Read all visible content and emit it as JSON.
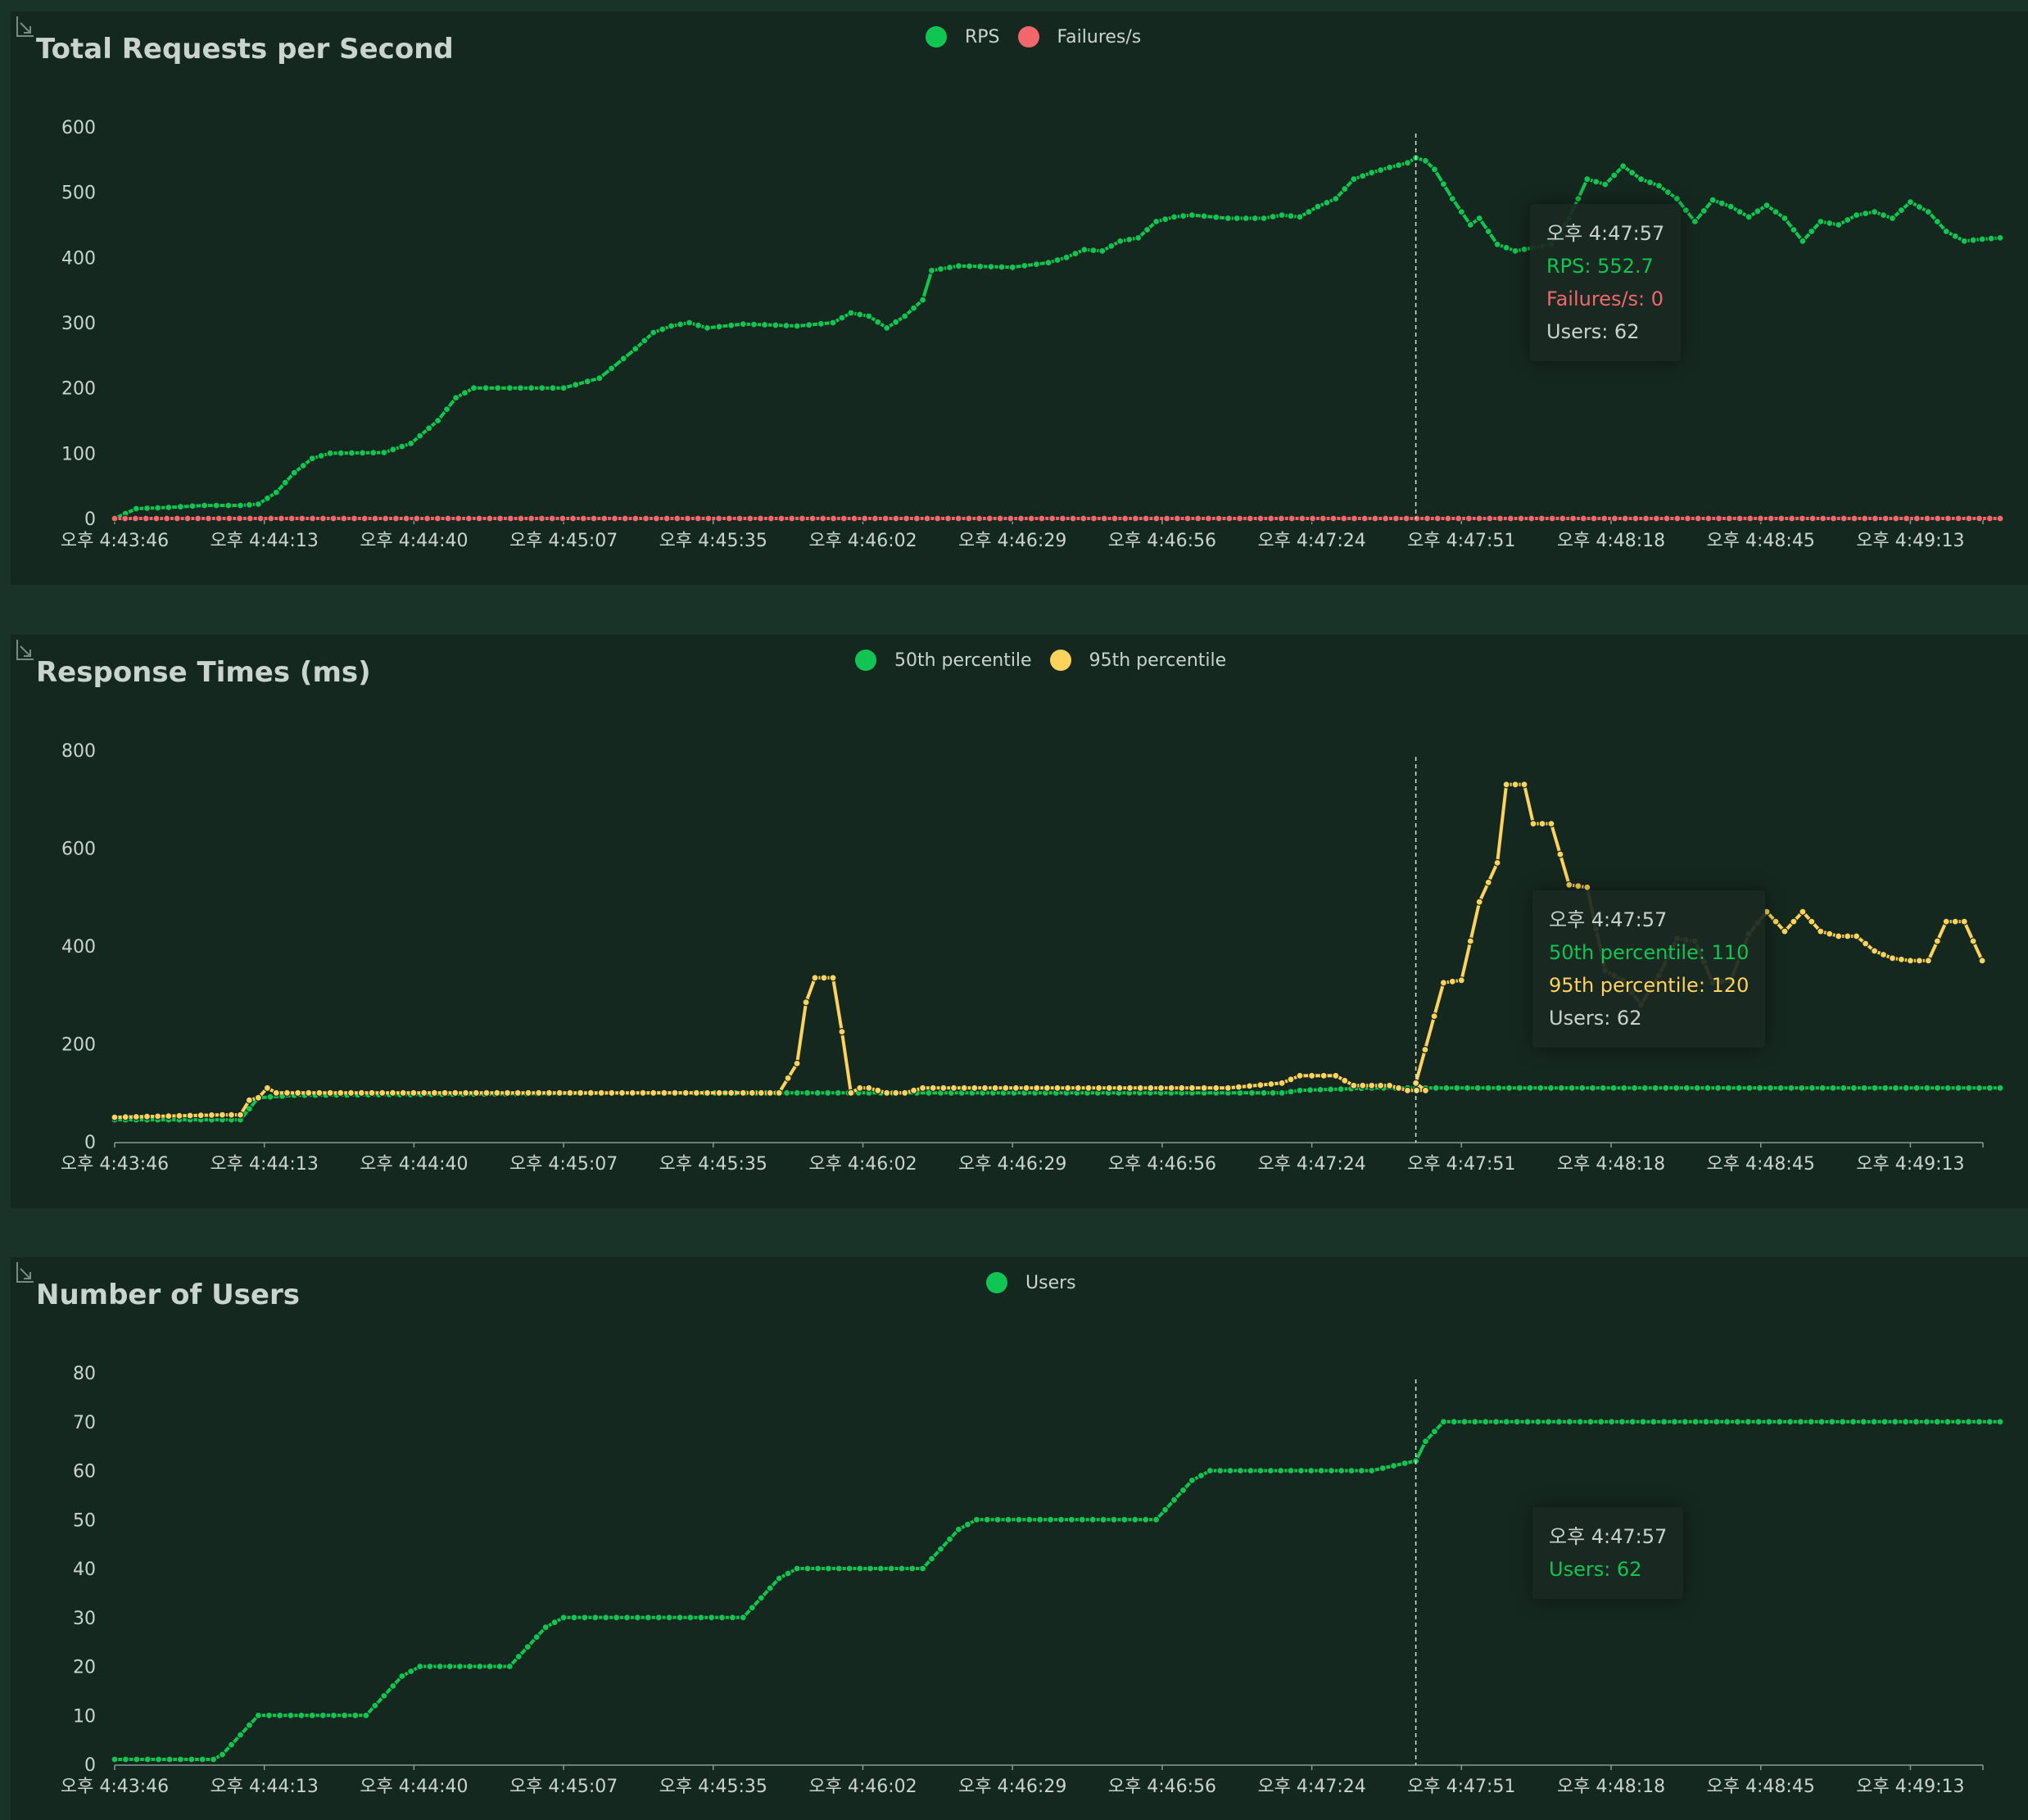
{
  "x_labels": [
    "오후 4:43:46",
    "오후 4:44:13",
    "오후 4:44:40",
    "오후 4:45:07",
    "오후 4:45:35",
    "오후 4:46:02",
    "오후 4:46:29",
    "오후 4:46:56",
    "오후 4:47:24",
    "오후 4:47:51",
    "오후 4:48:18",
    "오후 4:48:45",
    "오후 4:49:13"
  ],
  "panels": [
    {
      "title": "Total Requests per Second",
      "legend": [
        {
          "label": "RPS",
          "color": "#11c552"
        },
        {
          "label": "Failures/s",
          "color": "#f2676b"
        }
      ],
      "tooltip": {
        "time": "오후 4:47:57",
        "lines": [
          {
            "text": "RPS: 552.7",
            "color": "#11c552"
          },
          {
            "text": "Failures/s: 0",
            "color": "#f2676b"
          },
          {
            "text": "Users: 62",
            "color": "#c9d4ce"
          }
        ]
      }
    },
    {
      "title": "Response Times (ms)",
      "legend": [
        {
          "label": "50th percentile",
          "color": "#11c552"
        },
        {
          "label": "95th percentile",
          "color": "#fdd35c"
        }
      ],
      "tooltip": {
        "time": "오후 4:47:57",
        "lines": [
          {
            "text": "50th percentile: 110",
            "color": "#11c552"
          },
          {
            "text": "95th percentile: 120",
            "color": "#fdd35c"
          },
          {
            "text": "Users: 62",
            "color": "#c9d4ce"
          }
        ]
      }
    },
    {
      "title": "Number of Users",
      "legend": [
        {
          "label": "Users",
          "color": "#11c552"
        }
      ],
      "tooltip": {
        "time": "오후 4:47:57",
        "lines": [
          {
            "text": "Users: 62",
            "color": "#11c552"
          }
        ]
      }
    }
  ],
  "chart_data": [
    {
      "type": "line",
      "title": "Total Requests per Second",
      "x_labels": [
        "오후 4:43:46",
        "오후 4:44:13",
        "오후 4:44:40",
        "오후 4:45:07",
        "오후 4:45:35",
        "오후 4:46:02",
        "오후 4:46:29",
        "오후 4:46:56",
        "오후 4:47:24",
        "오후 4:47:51",
        "오후 4:48:18",
        "오후 4:48:45",
        "오후 4:49:13"
      ],
      "ylim": [
        0,
        600
      ],
      "yticks": [
        0,
        100,
        200,
        300,
        400,
        500,
        600
      ],
      "grid": false,
      "legend_position": "top-center",
      "marker_line_x": 0.7246,
      "series": [
        {
          "name": "RPS",
          "color": "#11c552",
          "mode": "points",
          "points": [
            [
              0,
              0
            ],
            [
              0.012,
              15
            ],
            [
              0.03,
              17
            ],
            [
              0.05,
              20
            ],
            [
              0.07,
              20
            ],
            [
              0.08,
              22
            ],
            [
              0.09,
              40
            ],
            [
              0.1,
              70
            ],
            [
              0.11,
              92
            ],
            [
              0.12,
              100
            ],
            [
              0.15,
              101
            ],
            [
              0.165,
              115
            ],
            [
              0.18,
              150
            ],
            [
              0.19,
              185
            ],
            [
              0.2,
              200
            ],
            [
              0.22,
              200
            ],
            [
              0.25,
              200
            ],
            [
              0.27,
              215
            ],
            [
              0.29,
              260
            ],
            [
              0.3,
              285
            ],
            [
              0.31,
              295
            ],
            [
              0.32,
              300
            ],
            [
              0.33,
              292
            ],
            [
              0.35,
              298
            ],
            [
              0.38,
              295
            ],
            [
              0.4,
              300
            ],
            [
              0.41,
              315
            ],
            [
              0.42,
              310
            ],
            [
              0.43,
              292
            ],
            [
              0.44,
              310
            ],
            [
              0.45,
              335
            ],
            [
              0.455,
              380
            ],
            [
              0.47,
              387
            ],
            [
              0.5,
              385
            ],
            [
              0.52,
              392
            ],
            [
              0.53,
              400
            ],
            [
              0.54,
              412
            ],
            [
              0.55,
              410
            ],
            [
              0.56,
              425
            ],
            [
              0.57,
              430
            ],
            [
              0.58,
              455
            ],
            [
              0.59,
              462
            ],
            [
              0.6,
              465
            ],
            [
              0.62,
              460
            ],
            [
              0.63,
              460
            ],
            [
              0.64,
              460
            ],
            [
              0.65,
              465
            ],
            [
              0.66,
              462
            ],
            [
              0.67,
              478
            ],
            [
              0.68,
              490
            ],
            [
              0.69,
              520
            ],
            [
              0.7,
              530
            ],
            [
              0.71,
              538
            ],
            [
              0.72,
              545
            ],
            [
              0.7246,
              552.7
            ],
            [
              0.73,
              548
            ],
            [
              0.735,
              535
            ],
            [
              0.745,
              490
            ],
            [
              0.755,
              450
            ],
            [
              0.76,
              460
            ],
            [
              0.77,
              420
            ],
            [
              0.78,
              410
            ],
            [
              0.79,
              415
            ],
            [
              0.8,
              420
            ],
            [
              0.81,
              460
            ],
            [
              0.82,
              520
            ],
            [
              0.83,
              512
            ],
            [
              0.84,
              540
            ],
            [
              0.85,
              520
            ],
            [
              0.86,
              510
            ],
            [
              0.87,
              490
            ],
            [
              0.88,
              455
            ],
            [
              0.89,
              488
            ],
            [
              0.9,
              478
            ],
            [
              0.91,
              462
            ],
            [
              0.92,
              480
            ],
            [
              0.93,
              460
            ],
            [
              0.94,
              425
            ],
            [
              0.95,
              455
            ],
            [
              0.96,
              450
            ],
            [
              0.97,
              465
            ],
            [
              0.98,
              470
            ],
            [
              0.99,
              460
            ],
            [
              1.0,
              485
            ],
            [
              1.01,
              470
            ],
            [
              1.02,
              440
            ],
            [
              1.03,
              425
            ],
            [
              1.04,
              428
            ],
            [
              1.05,
              430
            ]
          ]
        },
        {
          "name": "Failures/s",
          "color": "#f2676b",
          "mode": "flat",
          "points": [
            [
              0,
              0
            ],
            [
              1.05,
              0
            ]
          ]
        }
      ]
    },
    {
      "type": "line",
      "title": "Response Times (ms)",
      "x_labels": [
        "오후 4:43:46",
        "오후 4:44:13",
        "오후 4:44:40",
        "오후 4:45:07",
        "오후 4:45:35",
        "오후 4:46:02",
        "오후 4:46:29",
        "오후 4:46:56",
        "오후 4:47:24",
        "오후 4:47:51",
        "오후 4:48:18",
        "오후 4:48:45",
        "오후 4:49:13"
      ],
      "ylim": [
        0,
        800
      ],
      "yticks": [
        0,
        200,
        400,
        600,
        800
      ],
      "grid": false,
      "legend_position": "top-center",
      "marker_line_x": 0.7246,
      "series": [
        {
          "name": "50th percentile",
          "color": "#11c552",
          "mode": "points",
          "points": [
            [
              0,
              45
            ],
            [
              0.06,
              45
            ],
            [
              0.07,
              45
            ],
            [
              0.08,
              90
            ],
            [
              0.1,
              95
            ],
            [
              0.3,
              100
            ],
            [
              0.42,
              100
            ],
            [
              0.44,
              100
            ],
            [
              0.46,
              100
            ],
            [
              0.6,
              100
            ],
            [
              0.62,
              100
            ],
            [
              0.64,
              100
            ],
            [
              0.65,
              100
            ],
            [
              0.66,
              105
            ],
            [
              0.7,
              110
            ],
            [
              0.72,
              110
            ],
            [
              0.7246,
              110
            ],
            [
              0.73,
              110
            ],
            [
              1.05,
              110
            ]
          ]
        },
        {
          "name": "95th percentile",
          "color": "#fdd35c",
          "mode": "points",
          "points": [
            [
              0,
              50
            ],
            [
              0.06,
              55
            ],
            [
              0.07,
              55
            ],
            [
              0.075,
              85
            ],
            [
              0.08,
              90
            ],
            [
              0.085,
              110
            ],
            [
              0.09,
              100
            ],
            [
              0.12,
              100
            ],
            [
              0.3,
              100
            ],
            [
              0.33,
              100
            ],
            [
              0.35,
              100
            ],
            [
              0.36,
              100
            ],
            [
              0.37,
              100
            ],
            [
              0.38,
              160
            ],
            [
              0.385,
              285
            ],
            [
              0.39,
              335
            ],
            [
              0.4,
              335
            ],
            [
              0.405,
              225
            ],
            [
              0.41,
              100
            ],
            [
              0.415,
              110
            ],
            [
              0.42,
              110
            ],
            [
              0.43,
              100
            ],
            [
              0.44,
              100
            ],
            [
              0.45,
              110
            ],
            [
              0.6,
              110
            ],
            [
              0.62,
              110
            ],
            [
              0.65,
              120
            ],
            [
              0.66,
              135
            ],
            [
              0.68,
              135
            ],
            [
              0.69,
              115
            ],
            [
              0.7,
              115
            ],
            [
              0.71,
              115
            ],
            [
              0.72,
              105
            ],
            [
              0.73,
              105
            ],
            [
              0.7246,
              120
            ],
            [
              0.74,
              325
            ],
            [
              0.75,
              330
            ],
            [
              0.76,
              490
            ],
            [
              0.77,
              570
            ],
            [
              0.775,
              730
            ],
            [
              0.785,
              730
            ],
            [
              0.79,
              650
            ],
            [
              0.8,
              650
            ],
            [
              0.81,
              525
            ],
            [
              0.82,
              520
            ],
            [
              0.83,
              350
            ],
            [
              0.84,
              330
            ],
            [
              0.85,
              280
            ],
            [
              0.86,
              340
            ],
            [
              0.87,
              415
            ],
            [
              0.88,
              410
            ],
            [
              0.89,
              325
            ],
            [
              0.9,
              330
            ],
            [
              0.91,
              425
            ],
            [
              0.92,
              470
            ],
            [
              0.93,
              430
            ],
            [
              0.94,
              470
            ],
            [
              0.95,
              430
            ],
            [
              0.96,
              420
            ],
            [
              0.97,
              420
            ],
            [
              0.98,
              390
            ],
            [
              0.99,
              375
            ],
            [
              1.0,
              370
            ],
            [
              1.01,
              370
            ],
            [
              1.02,
              450
            ],
            [
              1.03,
              450
            ],
            [
              1.04,
              370
            ]
          ]
        }
      ]
    },
    {
      "type": "line",
      "title": "Number of Users",
      "x_labels": [
        "오후 4:43:46",
        "오후 4:44:13",
        "오후 4:44:40",
        "오후 4:45:07",
        "오후 4:45:35",
        "오후 4:46:02",
        "오후 4:46:29",
        "오후 4:46:56",
        "오후 4:47:24",
        "오후 4:47:51",
        "오후 4:48:18",
        "오후 4:48:45",
        "오후 4:49:13"
      ],
      "ylim": [
        0,
        80
      ],
      "yticks": [
        0,
        10,
        20,
        30,
        40,
        50,
        60,
        70,
        80
      ],
      "grid": false,
      "legend_position": "top-center",
      "marker_line_x": 0.7246,
      "series": [
        {
          "name": "Users",
          "color": "#11c552",
          "mode": "points",
          "points": [
            [
              0,
              1
            ],
            [
              0.055,
              1
            ],
            [
              0.06,
              2
            ],
            [
              0.07,
              6
            ],
            [
              0.08,
              10
            ],
            [
              0.14,
              10
            ],
            [
              0.15,
              14
            ],
            [
              0.16,
              18
            ],
            [
              0.17,
              20
            ],
            [
              0.22,
              20
            ],
            [
              0.23,
              24
            ],
            [
              0.24,
              28
            ],
            [
              0.25,
              30
            ],
            [
              0.35,
              30
            ],
            [
              0.36,
              34
            ],
            [
              0.37,
              38
            ],
            [
              0.38,
              40
            ],
            [
              0.45,
              40
            ],
            [
              0.46,
              44
            ],
            [
              0.47,
              48
            ],
            [
              0.48,
              50
            ],
            [
              0.58,
              50
            ],
            [
              0.59,
              54
            ],
            [
              0.6,
              58
            ],
            [
              0.61,
              60
            ],
            [
              0.7,
              60
            ],
            [
              0.7246,
              62
            ],
            [
              0.73,
              66
            ],
            [
              0.74,
              70
            ],
            [
              1.05,
              70
            ]
          ]
        }
      ]
    }
  ]
}
